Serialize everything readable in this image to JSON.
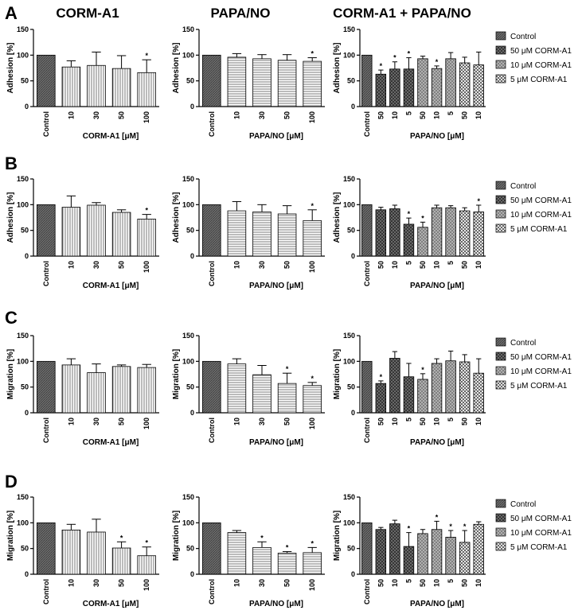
{
  "column_titles": [
    "CORM-A1",
    "PAPA/NO",
    "CORM-A1 + PAPA/NO"
  ],
  "panel_letters": [
    "A",
    "B",
    "C",
    "D"
  ],
  "legend": [
    {
      "label": "Control",
      "pattern": "p-control"
    },
    {
      "label": "50 μM CORM-A1",
      "pattern": "p-50"
    },
    {
      "label": "10 μM CORM-A1",
      "pattern": "p-10"
    },
    {
      "label": "5 μM CORM-A1",
      "pattern": "p-5"
    }
  ],
  "chart_data": [
    {
      "id": "A-corm",
      "row": 0,
      "col": 0,
      "type": "bar",
      "ylabel": "Adhesion [%]",
      "xlabel": "CORM-A1 [μM]",
      "ylim": [
        0,
        150
      ],
      "yticks": [
        0,
        50,
        100,
        150
      ],
      "categories": [
        "Control",
        "10",
        "30",
        "50",
        "100"
      ],
      "values": [
        100,
        77,
        80,
        74,
        66
      ],
      "errors": [
        0,
        12,
        26,
        25,
        25
      ],
      "sig": [
        false,
        false,
        false,
        false,
        true
      ],
      "patterns": [
        "p-control",
        "p-vert",
        "p-vert",
        "p-vert",
        "p-vert"
      ]
    },
    {
      "id": "A-papa",
      "row": 0,
      "col": 1,
      "type": "bar",
      "ylabel": "Adhesion [%]",
      "xlabel": "PAPA/NO [μM]",
      "ylim": [
        0,
        150
      ],
      "yticks": [
        0,
        50,
        100,
        150
      ],
      "categories": [
        "Control",
        "10",
        "30",
        "50",
        "100"
      ],
      "values": [
        100,
        96,
        93,
        90,
        88
      ],
      "errors": [
        0,
        7,
        8,
        11,
        7
      ],
      "sig": [
        false,
        false,
        false,
        false,
        true
      ],
      "patterns": [
        "p-control",
        "p-horiz",
        "p-horiz",
        "p-horiz",
        "p-horiz"
      ]
    },
    {
      "id": "A-combo",
      "row": 0,
      "col": 2,
      "type": "bar",
      "ylabel": "Adhesion [%]",
      "xlabel": "PAPA/NO [μM]",
      "ylim": [
        0,
        150
      ],
      "yticks": [
        0,
        50,
        100,
        150
      ],
      "categories": [
        "Control",
        "50",
        "10",
        "5",
        "50",
        "10",
        "5",
        "50",
        "10"
      ],
      "values": [
        100,
        63,
        73,
        73,
        93,
        74,
        93,
        85,
        81
      ],
      "errors": [
        0,
        8,
        14,
        22,
        5,
        5,
        12,
        11,
        25
      ],
      "sig": [
        false,
        true,
        true,
        true,
        false,
        true,
        false,
        false,
        false
      ],
      "patterns": [
        "p-control",
        "p-50",
        "p-50",
        "p-50",
        "p-10",
        "p-10",
        "p-10",
        "p-5",
        "p-5"
      ]
    },
    {
      "id": "B-corm",
      "row": 1,
      "col": 0,
      "type": "bar",
      "ylabel": "Adhesion [%]",
      "xlabel": "CORM-A1 [μM]",
      "ylim": [
        0,
        150
      ],
      "yticks": [
        0,
        50,
        100,
        150
      ],
      "categories": [
        "Control",
        "10",
        "30",
        "50",
        "100"
      ],
      "values": [
        100,
        95,
        99,
        85,
        72
      ],
      "errors": [
        0,
        22,
        5,
        5,
        9
      ],
      "sig": [
        false,
        false,
        false,
        false,
        true
      ],
      "patterns": [
        "p-control",
        "p-vert",
        "p-vert",
        "p-vert",
        "p-vert"
      ]
    },
    {
      "id": "B-papa",
      "row": 1,
      "col": 1,
      "type": "bar",
      "ylabel": "Adhesion [%]",
      "xlabel": "PAPA/NO [μM]",
      "ylim": [
        0,
        150
      ],
      "yticks": [
        0,
        50,
        100,
        150
      ],
      "categories": [
        "Control",
        "10",
        "30",
        "50",
        "100"
      ],
      "values": [
        100,
        88,
        86,
        82,
        69
      ],
      "errors": [
        0,
        18,
        14,
        16,
        21
      ],
      "sig": [
        false,
        false,
        false,
        false,
        true
      ],
      "patterns": [
        "p-control",
        "p-horiz",
        "p-horiz",
        "p-horiz",
        "p-horiz"
      ]
    },
    {
      "id": "B-combo",
      "row": 1,
      "col": 2,
      "type": "bar",
      "ylabel": "Adhesion [%]",
      "xlabel": "PAPA/NO [μM]",
      "ylim": [
        0,
        150
      ],
      "yticks": [
        0,
        50,
        100,
        150
      ],
      "categories": [
        "Control",
        "50",
        "10",
        "5",
        "50",
        "10",
        "5",
        "50",
        "10"
      ],
      "values": [
        100,
        90,
        92,
        62,
        56,
        94,
        94,
        88,
        86
      ],
      "errors": [
        0,
        5,
        7,
        12,
        10,
        5,
        4,
        6,
        13
      ],
      "sig": [
        false,
        false,
        false,
        true,
        true,
        false,
        false,
        false,
        true
      ],
      "patterns": [
        "p-control",
        "p-50",
        "p-50",
        "p-50",
        "p-10",
        "p-10",
        "p-10",
        "p-5",
        "p-5"
      ]
    },
    {
      "id": "C-corm",
      "row": 2,
      "col": 0,
      "type": "bar",
      "ylabel": "Migration [%]",
      "xlabel": "CORM-A1 [μM]",
      "ylim": [
        0,
        150
      ],
      "yticks": [
        0,
        50,
        100,
        150
      ],
      "categories": [
        "Control",
        "10",
        "30",
        "50",
        "100"
      ],
      "values": [
        100,
        93,
        78,
        90,
        88
      ],
      "errors": [
        0,
        12,
        17,
        3,
        6
      ],
      "sig": [
        false,
        false,
        false,
        false,
        false
      ],
      "patterns": [
        "p-control",
        "p-vert",
        "p-vert",
        "p-vert",
        "p-vert"
      ]
    },
    {
      "id": "C-papa",
      "row": 2,
      "col": 1,
      "type": "bar",
      "ylabel": "Migration [%]",
      "xlabel": "PAPA/NO [μM]",
      "ylim": [
        0,
        150
      ],
      "yticks": [
        0,
        50,
        100,
        150
      ],
      "categories": [
        "Control",
        "10",
        "30",
        "50",
        "100"
      ],
      "values": [
        100,
        95,
        74,
        57,
        53
      ],
      "errors": [
        0,
        10,
        18,
        20,
        6
      ],
      "sig": [
        false,
        false,
        false,
        true,
        true
      ],
      "patterns": [
        "p-control",
        "p-horiz",
        "p-horiz",
        "p-horiz",
        "p-horiz"
      ]
    },
    {
      "id": "C-combo",
      "row": 2,
      "col": 2,
      "type": "bar",
      "ylabel": "Migration [%]",
      "xlabel": "PAPA/NO [μM]",
      "ylim": [
        0,
        150
      ],
      "yticks": [
        0,
        50,
        100,
        150
      ],
      "categories": [
        "Control",
        "50",
        "10",
        "5",
        "50",
        "10",
        "5",
        "50",
        "10"
      ],
      "values": [
        100,
        57,
        106,
        70,
        65,
        96,
        101,
        99,
        77
      ],
      "errors": [
        0,
        5,
        13,
        26,
        11,
        9,
        19,
        14,
        28
      ],
      "sig": [
        false,
        true,
        false,
        false,
        true,
        false,
        false,
        false,
        false
      ],
      "patterns": [
        "p-control",
        "p-50",
        "p-50",
        "p-50",
        "p-10",
        "p-10",
        "p-10",
        "p-5",
        "p-5"
      ]
    },
    {
      "id": "D-corm",
      "row": 3,
      "col": 0,
      "type": "bar",
      "ylabel": "Migration [%]",
      "xlabel": "CORM-A1 [μM]",
      "ylim": [
        0,
        150
      ],
      "yticks": [
        0,
        50,
        100,
        150
      ],
      "categories": [
        "Control",
        "10",
        "30",
        "50",
        "100"
      ],
      "values": [
        100,
        86,
        82,
        51,
        36
      ],
      "errors": [
        0,
        11,
        25,
        12,
        17
      ],
      "sig": [
        false,
        false,
        false,
        true,
        true
      ],
      "patterns": [
        "p-control",
        "p-vert",
        "p-vert",
        "p-vert",
        "p-vert"
      ]
    },
    {
      "id": "D-papa",
      "row": 3,
      "col": 1,
      "type": "bar",
      "ylabel": "Migration [%]",
      "xlabel": "PAPA/NO [μM]",
      "ylim": [
        0,
        150
      ],
      "yticks": [
        0,
        50,
        100,
        150
      ],
      "categories": [
        "Control",
        "10",
        "30",
        "50",
        "100"
      ],
      "values": [
        100,
        81,
        52,
        41,
        42
      ],
      "errors": [
        0,
        4,
        11,
        3,
        10
      ],
      "sig": [
        false,
        false,
        true,
        true,
        true
      ],
      "patterns": [
        "p-control",
        "p-horiz",
        "p-horiz",
        "p-horiz",
        "p-horiz"
      ]
    },
    {
      "id": "D-combo",
      "row": 3,
      "col": 2,
      "type": "bar",
      "ylabel": "Migration [%]",
      "xlabel": "PAPA/NO [μM]",
      "ylim": [
        0,
        150
      ],
      "yticks": [
        0,
        50,
        100,
        150
      ],
      "categories": [
        "Control",
        "50",
        "10",
        "5",
        "50",
        "10",
        "5",
        "50",
        "10"
      ],
      "values": [
        100,
        87,
        98,
        54,
        79,
        87,
        72,
        62,
        97
      ],
      "errors": [
        0,
        4,
        7,
        27,
        8,
        16,
        13,
        23,
        5
      ],
      "sig": [
        false,
        false,
        false,
        true,
        false,
        true,
        true,
        true,
        false
      ],
      "patterns": [
        "p-control",
        "p-50",
        "p-50",
        "p-50",
        "p-10",
        "p-10",
        "p-10",
        "p-5",
        "p-5"
      ]
    }
  ]
}
